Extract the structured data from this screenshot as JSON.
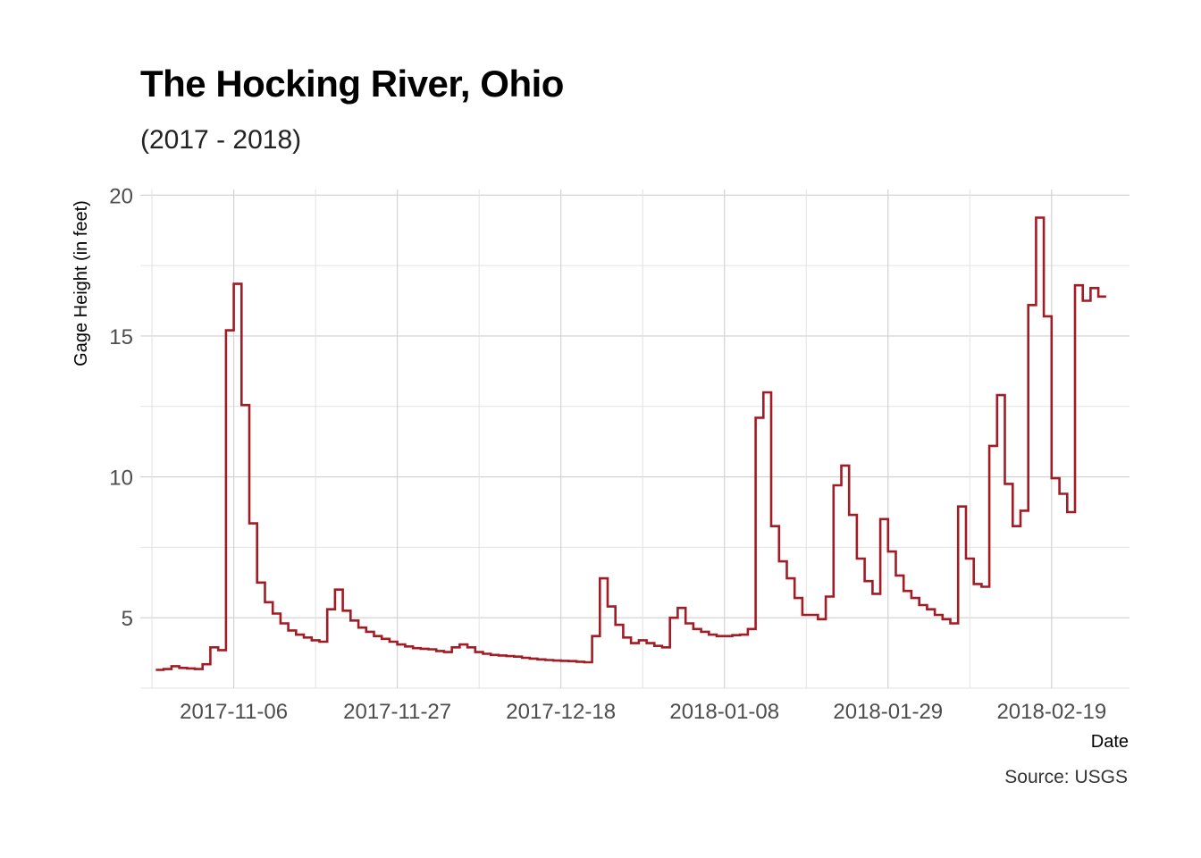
{
  "chart_data": {
    "type": "line",
    "step": true,
    "title": "The Hocking River, Ohio",
    "subtitle": "(2017 - 2018)",
    "caption": "Source: USGS",
    "xlabel": "Date",
    "ylabel": "Gage Height (in feet)",
    "x_type": "date",
    "xlim": [
      "2017-10-25",
      "2018-03-01"
    ],
    "ylim": [
      2.5,
      20.2
    ],
    "x_ticks": [
      "2017-11-06",
      "2017-11-27",
      "2017-12-18",
      "2018-01-08",
      "2018-01-29",
      "2018-02-19"
    ],
    "y_ticks": [
      5,
      10,
      15,
      20
    ],
    "grid": true,
    "line_color": "#a11c24",
    "series": [
      {
        "x": [
          "2017-10-27",
          "2017-10-28",
          "2017-10-29",
          "2017-10-30",
          "2017-10-31",
          "2017-11-01",
          "2017-11-02",
          "2017-11-03",
          "2017-11-04",
          "2017-11-05",
          "2017-11-06",
          "2017-11-07",
          "2017-11-08",
          "2017-11-09",
          "2017-11-10",
          "2017-11-11",
          "2017-11-12",
          "2017-11-13",
          "2017-11-14",
          "2017-11-15",
          "2017-11-16",
          "2017-11-17",
          "2017-11-18",
          "2017-11-19",
          "2017-11-20",
          "2017-11-21",
          "2017-11-22",
          "2017-11-23",
          "2017-11-24",
          "2017-11-25",
          "2017-11-26",
          "2017-11-27",
          "2017-11-28",
          "2017-11-29",
          "2017-11-30",
          "2017-12-01",
          "2017-12-02",
          "2017-12-03",
          "2017-12-04",
          "2017-12-05",
          "2017-12-06",
          "2017-12-07",
          "2017-12-08",
          "2017-12-09",
          "2017-12-10",
          "2017-12-11",
          "2017-12-12",
          "2017-12-13",
          "2017-12-14",
          "2017-12-15",
          "2017-12-16",
          "2017-12-17",
          "2017-12-18",
          "2017-12-19",
          "2017-12-20",
          "2017-12-21",
          "2017-12-22",
          "2017-12-23",
          "2017-12-24",
          "2017-12-25",
          "2017-12-26",
          "2017-12-27",
          "2017-12-28",
          "2017-12-29",
          "2017-12-30",
          "2017-12-31",
          "2018-01-01",
          "2018-01-02",
          "2018-01-03",
          "2018-01-04",
          "2018-01-05",
          "2018-01-06",
          "2018-01-07",
          "2018-01-08",
          "2018-01-09",
          "2018-01-10",
          "2018-01-11",
          "2018-01-12",
          "2018-01-13",
          "2018-01-14",
          "2018-01-15",
          "2018-01-16",
          "2018-01-17",
          "2018-01-18",
          "2018-01-19",
          "2018-01-20",
          "2018-01-21",
          "2018-01-22",
          "2018-01-23",
          "2018-01-24",
          "2018-01-25",
          "2018-01-26",
          "2018-01-27",
          "2018-01-28",
          "2018-01-29",
          "2018-01-30",
          "2018-01-31",
          "2018-02-01",
          "2018-02-02",
          "2018-02-03",
          "2018-02-04",
          "2018-02-05",
          "2018-02-06",
          "2018-02-07",
          "2018-02-08",
          "2018-02-09",
          "2018-02-10",
          "2018-02-11",
          "2018-02-12",
          "2018-02-13",
          "2018-02-14",
          "2018-02-15",
          "2018-02-16",
          "2018-02-17",
          "2018-02-18",
          "2018-02-19",
          "2018-02-20",
          "2018-02-21",
          "2018-02-22",
          "2018-02-23",
          "2018-02-24",
          "2018-02-25"
        ],
        "y": [
          3.15,
          3.18,
          3.28,
          3.22,
          3.2,
          3.18,
          3.35,
          3.95,
          3.85,
          15.2,
          16.85,
          12.55,
          8.35,
          6.25,
          5.55,
          5.15,
          4.8,
          4.55,
          4.4,
          4.3,
          4.2,
          4.15,
          5.3,
          6.0,
          5.25,
          4.9,
          4.65,
          4.5,
          4.35,
          4.25,
          4.15,
          4.05,
          3.98,
          3.92,
          3.9,
          3.88,
          3.82,
          3.78,
          3.95,
          4.05,
          3.95,
          3.78,
          3.72,
          3.68,
          3.66,
          3.64,
          3.62,
          3.58,
          3.55,
          3.52,
          3.5,
          3.48,
          3.47,
          3.46,
          3.44,
          3.42,
          4.35,
          6.4,
          5.4,
          4.75,
          4.3,
          4.1,
          4.2,
          4.1,
          4.0,
          3.95,
          5.0,
          5.35,
          4.8,
          4.6,
          4.5,
          4.4,
          4.35,
          4.35,
          4.38,
          4.4,
          4.6,
          12.1,
          13.0,
          8.25,
          7.0,
          6.4,
          5.7,
          5.1,
          5.1,
          4.95,
          5.75,
          9.7,
          10.4,
          8.65,
          7.1,
          6.3,
          5.85,
          8.5,
          7.35,
          6.5,
          5.95,
          5.7,
          5.45,
          5.3,
          5.1,
          4.95,
          4.8,
          8.95,
          7.1,
          6.2,
          6.1,
          11.1,
          12.9,
          9.75,
          8.25,
          8.8,
          16.1,
          19.2,
          15.7,
          9.95,
          9.4,
          8.75,
          16.8,
          16.25,
          16.7,
          16.4
        ]
      }
    ]
  }
}
